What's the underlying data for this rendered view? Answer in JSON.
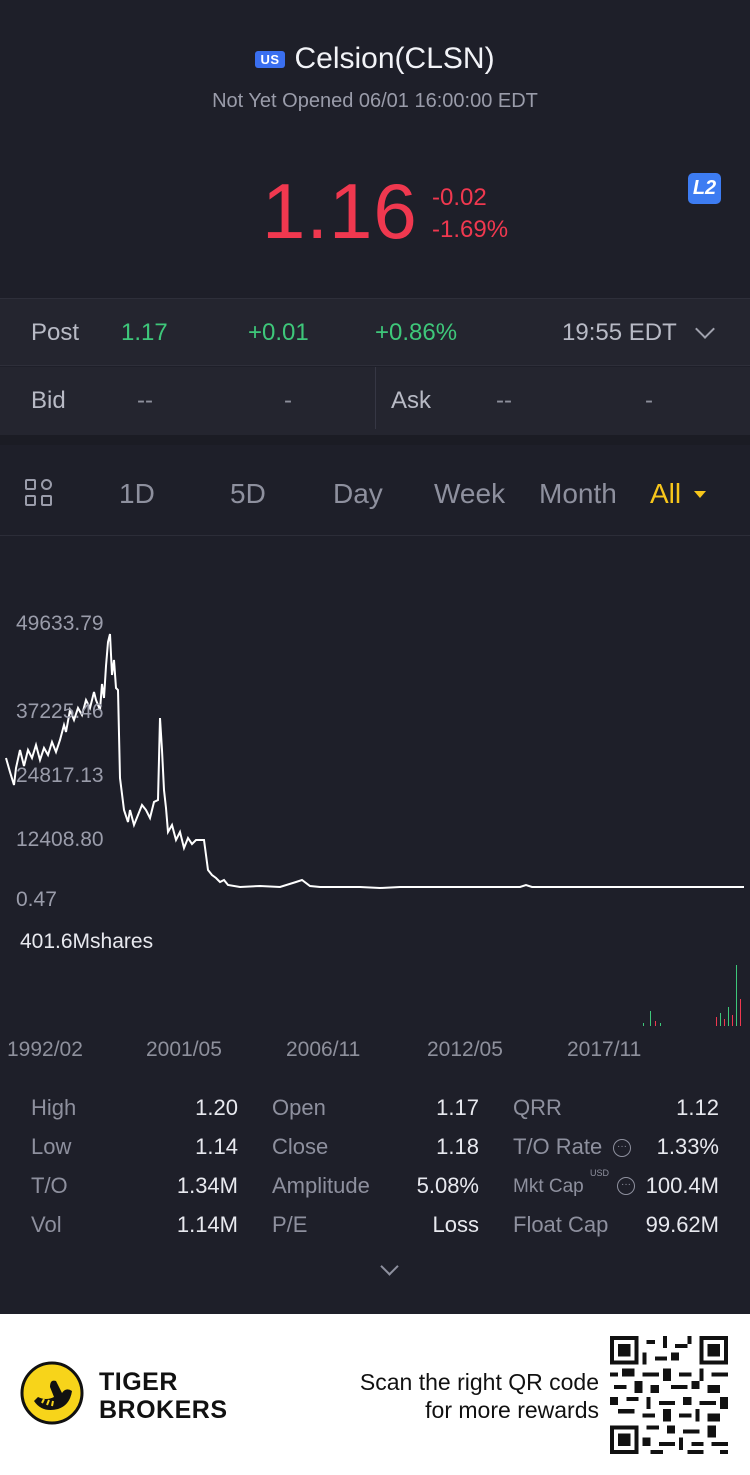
{
  "header": {
    "market_badge": "US",
    "stock_name": "Celsion(CLSN)",
    "status": "Not Yet Opened 06/01 16:00:00 EDT",
    "price": "1.16",
    "change_abs": "-0.02",
    "change_pct": "-1.69%",
    "l2_badge": "L2"
  },
  "post_market": {
    "label": "Post",
    "price": "1.17",
    "change_abs": "+0.01",
    "change_pct": "+0.86%",
    "time": "19:55 EDT"
  },
  "bid_ask": {
    "bid_label": "Bid",
    "bid_price": "--",
    "bid_vol": "-",
    "ask_label": "Ask",
    "ask_price": "--",
    "ask_vol": "-"
  },
  "tabs": {
    "items": [
      "1D",
      "5D",
      "Day",
      "Week",
      "Month",
      "All"
    ],
    "active": "All"
  },
  "chart": {
    "y_labels": [
      "49633.79",
      "37225.46",
      "24817.13",
      "12408.80",
      "0.47"
    ],
    "volume_label": "401.6Mshares",
    "x_labels": [
      "1992/02",
      "2001/05",
      "2006/11",
      "2012/05",
      "2017/11"
    ],
    "line_color": "#ffffff"
  },
  "stats": {
    "rows": [
      [
        {
          "label": "High",
          "value": "1.20"
        },
        {
          "label": "Open",
          "value": "1.17"
        },
        {
          "label": "QRR",
          "value": "1.12"
        }
      ],
      [
        {
          "label": "Low",
          "value": "1.14"
        },
        {
          "label": "Close",
          "value": "1.18"
        },
        {
          "label": "T/O Rate",
          "value": "1.33%"
        }
      ],
      [
        {
          "label": "T/O",
          "value": "1.34M"
        },
        {
          "label": "Amplitude",
          "value": "5.08%"
        },
        {
          "label": "Mkt Cap",
          "value": "100.4M"
        }
      ],
      [
        {
          "label": "Vol",
          "value": "1.14M"
        },
        {
          "label": "P/E",
          "value": "Loss"
        },
        {
          "label": "Float Cap",
          "value": "99.62M"
        }
      ]
    ],
    "usd_tag": "USD"
  },
  "footer": {
    "brand_line1": "TIGER",
    "brand_line2": "BROKERS",
    "scan_line1": "Scan the right QR code",
    "scan_line2": "for more rewards"
  },
  "colors": {
    "background": "#1e1f29",
    "down": "#f0384f",
    "up": "#3ec77a",
    "accent": "#f7c61b",
    "badge": "#3a6ff0"
  },
  "icons": [
    "chevron-down-icon",
    "grid-icon",
    "caret-down-icon",
    "info-icon",
    "tiger-logo-icon",
    "qr-code-icon"
  ]
}
